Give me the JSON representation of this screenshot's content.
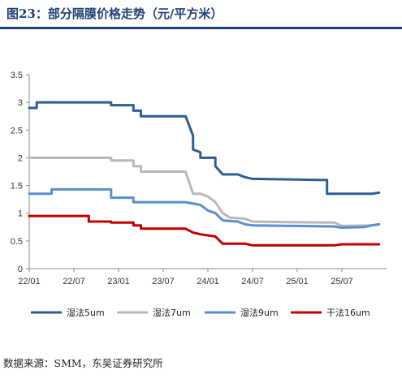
{
  "figure": {
    "title": "图23：部分隔膜价格走势（元/平方米）",
    "source": "数据来源：SMM，东吴证券研究所"
  },
  "chart_data": {
    "type": "line",
    "title": "图23：部分隔膜价格走势（元/平方米）",
    "xlabel": "",
    "ylabel": "",
    "ylim": [
      0,
      3.5
    ],
    "yticks": [
      "0",
      "0.5",
      "1",
      "1.5",
      "2",
      "2.5",
      "3",
      "3.5"
    ],
    "xlim": [
      "2022-01",
      "2026-01"
    ],
    "xticks": [
      "22/01",
      "22/07",
      "23/01",
      "23/07",
      "24/01",
      "24/07",
      "25/01",
      "25/07"
    ],
    "grid": false,
    "legend": "bottom",
    "series": [
      {
        "name": "湿法5um",
        "color": "#2e5d96",
        "points": [
          [
            "2022-01",
            2.9
          ],
          [
            "2022-02",
            2.9
          ],
          [
            "2022-02",
            3.0
          ],
          [
            "2022-12",
            3.0
          ],
          [
            "2022-12",
            2.95
          ],
          [
            "2023-03",
            2.95
          ],
          [
            "2023-03",
            2.85
          ],
          [
            "2023-04",
            2.85
          ],
          [
            "2023-04",
            2.75
          ],
          [
            "2023-10",
            2.75
          ],
          [
            "2023-11",
            2.4
          ],
          [
            "2023-11",
            2.15
          ],
          [
            "2023-12",
            2.1
          ],
          [
            "2023-12",
            2.0
          ],
          [
            "2024-02",
            2.0
          ],
          [
            "2024-02",
            1.85
          ],
          [
            "2024-03",
            1.7
          ],
          [
            "2024-05",
            1.7
          ],
          [
            "2024-06",
            1.65
          ],
          [
            "2024-07",
            1.62
          ],
          [
            "2025-04",
            1.6
          ],
          [
            "2025-05",
            1.6
          ],
          [
            "2025-05",
            1.35
          ],
          [
            "2025-11",
            1.35
          ],
          [
            "2025-12",
            1.37
          ]
        ]
      },
      {
        "name": "湿法7um",
        "color": "#b8b8b8",
        "points": [
          [
            "2022-01",
            2.0
          ],
          [
            "2022-12",
            2.0
          ],
          [
            "2022-12",
            1.95
          ],
          [
            "2023-03",
            1.95
          ],
          [
            "2023-03",
            1.85
          ],
          [
            "2023-04",
            1.85
          ],
          [
            "2023-04",
            1.75
          ],
          [
            "2023-10",
            1.75
          ],
          [
            "2023-11",
            1.35
          ],
          [
            "2023-12",
            1.35
          ],
          [
            "2024-01",
            1.3
          ],
          [
            "2024-02",
            1.2
          ],
          [
            "2024-03",
            1.0
          ],
          [
            "2024-04",
            0.92
          ],
          [
            "2024-06",
            0.9
          ],
          [
            "2024-07",
            0.85
          ],
          [
            "2024-11",
            0.84
          ],
          [
            "2025-06",
            0.83
          ],
          [
            "2025-07",
            0.77
          ],
          [
            "2025-11",
            0.78
          ],
          [
            "2025-12",
            0.8
          ]
        ]
      },
      {
        "name": "湿法9um",
        "color": "#5b8ed0",
        "points": [
          [
            "2022-01",
            1.35
          ],
          [
            "2022-04",
            1.35
          ],
          [
            "2022-04",
            1.43
          ],
          [
            "2022-12",
            1.43
          ],
          [
            "2022-12",
            1.28
          ],
          [
            "2023-03",
            1.28
          ],
          [
            "2023-03",
            1.2
          ],
          [
            "2023-10",
            1.2
          ],
          [
            "2023-12",
            1.15
          ],
          [
            "2024-01",
            1.05
          ],
          [
            "2024-02",
            1.0
          ],
          [
            "2024-03",
            0.87
          ],
          [
            "2024-05",
            0.85
          ],
          [
            "2024-06",
            0.8
          ],
          [
            "2024-07",
            0.78
          ],
          [
            "2025-06",
            0.76
          ],
          [
            "2025-07",
            0.74
          ],
          [
            "2025-10",
            0.75
          ],
          [
            "2025-11",
            0.78
          ],
          [
            "2025-12",
            0.8
          ]
        ]
      },
      {
        "name": "干法16um",
        "color": "#c00000",
        "points": [
          [
            "2022-01",
            0.95
          ],
          [
            "2022-09",
            0.95
          ],
          [
            "2022-09",
            0.85
          ],
          [
            "2022-12",
            0.85
          ],
          [
            "2022-12",
            0.83
          ],
          [
            "2023-03",
            0.83
          ],
          [
            "2023-03",
            0.78
          ],
          [
            "2023-04",
            0.78
          ],
          [
            "2023-04",
            0.72
          ],
          [
            "2023-10",
            0.72
          ],
          [
            "2023-11",
            0.65
          ],
          [
            "2023-12",
            0.62
          ],
          [
            "2024-01",
            0.6
          ],
          [
            "2024-02",
            0.58
          ],
          [
            "2024-03",
            0.45
          ],
          [
            "2024-06",
            0.45
          ],
          [
            "2024-07",
            0.42
          ],
          [
            "2025-06",
            0.42
          ],
          [
            "2025-07",
            0.44
          ],
          [
            "2025-12",
            0.44
          ]
        ]
      }
    ]
  }
}
